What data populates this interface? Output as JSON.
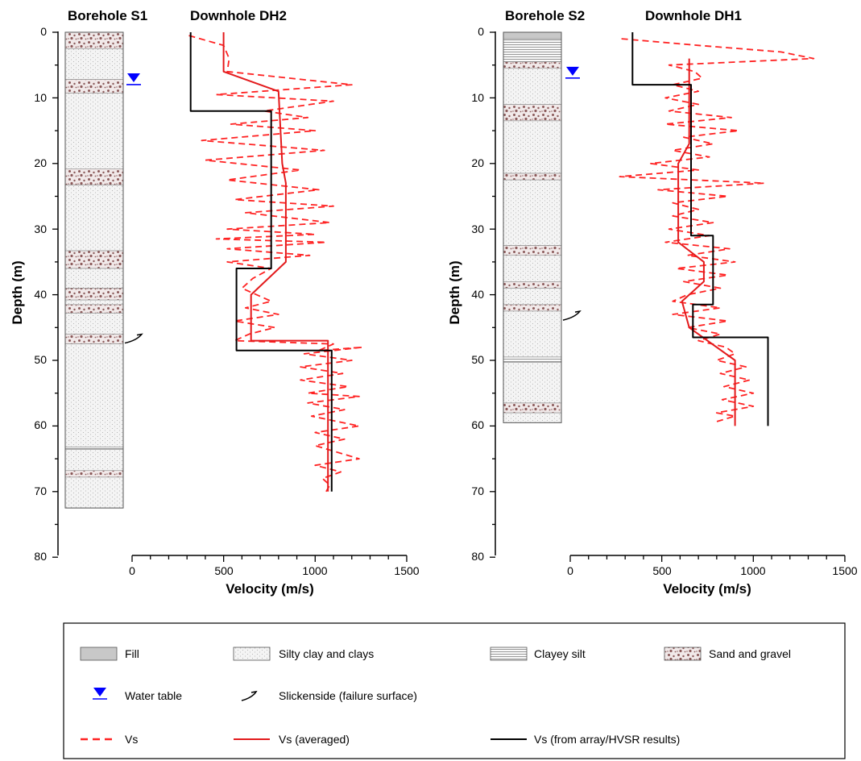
{
  "colors": {
    "vs": "#ff2222",
    "vs_averaged": "#e31a1c",
    "vs_array": "#000000",
    "water_table": "#0000ff",
    "fill": "#c8c8c8",
    "silty_clay": "#f4f4f4",
    "sand_gravel_dots": "#8b5a5a"
  },
  "y_axis": {
    "label": "Depth (m)",
    "ticks": [
      "0",
      "10",
      "20",
      "30",
      "40",
      "50",
      "60",
      "70",
      "80"
    ]
  },
  "x_axis": {
    "label": "Velocity (m/s)",
    "ticks": [
      "0",
      "500",
      "1000",
      "1500"
    ]
  },
  "panels": [
    {
      "borehole_title": "Borehole S1",
      "downhole_title": "Downhole DH2"
    },
    {
      "borehole_title": "Borehole S2",
      "downhole_title": "Downhole DH1"
    }
  ],
  "legend": {
    "fill": "Fill",
    "silty_clay": "Silty clay and clays",
    "clayey_silt": "Clayey silt",
    "sand_gravel": "Sand and gravel",
    "water_table": "Water table",
    "slickenside": "Slickenside (failure surface)",
    "vs": "Vs",
    "vs_averaged": "Vs (averaged)",
    "vs_array": "Vs (from array/HVSR results)"
  },
  "chart_data": [
    {
      "type": "line",
      "title": "Downhole DH2",
      "xlabel": "Velocity (m/s)",
      "ylabel": "Depth (m)",
      "xlim": [
        0,
        1500
      ],
      "ylim": [
        80,
        0
      ],
      "borehole": {
        "name": "Borehole S1",
        "total_depth": 72.5,
        "water_table_depth": 7,
        "slickenside_depth": 47,
        "layers": [
          {
            "type": "sand_gravel",
            "top": 0,
            "bottom": 2.5
          },
          {
            "type": "silty_clay",
            "top": 2.5,
            "bottom": 7.2
          },
          {
            "type": "sand_gravel",
            "top": 7.2,
            "bottom": 9.3
          },
          {
            "type": "silty_clay",
            "top": 9.3,
            "bottom": 20.8
          },
          {
            "type": "sand_gravel",
            "top": 20.8,
            "bottom": 23.3
          },
          {
            "type": "silty_clay",
            "top": 23.3,
            "bottom": 33.3
          },
          {
            "type": "sand_gravel",
            "top": 33.3,
            "bottom": 36
          },
          {
            "type": "silty_clay",
            "top": 36,
            "bottom": 39
          },
          {
            "type": "sand_gravel",
            "top": 39,
            "bottom": 40.8
          },
          {
            "type": "silty_clay",
            "top": 40.8,
            "bottom": 41.5
          },
          {
            "type": "sand_gravel",
            "top": 41.5,
            "bottom": 42.8
          },
          {
            "type": "silty_clay",
            "top": 42.8,
            "bottom": 46
          },
          {
            "type": "sand_gravel",
            "top": 46,
            "bottom": 47.5
          },
          {
            "type": "silty_clay",
            "top": 47.5,
            "bottom": 63.2
          },
          {
            "type": "clayey_silt",
            "top": 63.2,
            "bottom": 63.6
          },
          {
            "type": "silty_clay",
            "top": 63.6,
            "bottom": 66.8
          },
          {
            "type": "sand_gravel",
            "top": 66.8,
            "bottom": 67.8
          },
          {
            "type": "silty_clay",
            "top": 67.8,
            "bottom": 72.5
          }
        ]
      },
      "series": [
        {
          "name": "Vs",
          "style": "dashed",
          "points": [
            [
              310,
              0.5
            ],
            [
              500,
              2
            ],
            [
              530,
              4
            ],
            [
              520,
              6
            ],
            [
              1200,
              8
            ],
            [
              460,
              9.5
            ],
            [
              1100,
              10.5
            ],
            [
              720,
              12
            ],
            [
              960,
              13
            ],
            [
              540,
              14
            ],
            [
              1000,
              15
            ],
            [
              380,
              16.5
            ],
            [
              1050,
              18
            ],
            [
              400,
              19.5
            ],
            [
              920,
              21
            ],
            [
              520,
              22.5
            ],
            [
              1020,
              24
            ],
            [
              560,
              25.5
            ],
            [
              1100,
              26.5
            ],
            [
              620,
              27.5
            ],
            [
              1080,
              29
            ],
            [
              520,
              30
            ],
            [
              1000,
              30.8
            ],
            [
              460,
              31.5
            ],
            [
              1060,
              32
            ],
            [
              520,
              33
            ],
            [
              970,
              34
            ],
            [
              520,
              35
            ],
            [
              760,
              36
            ],
            [
              660,
              37.5
            ],
            [
              600,
              39
            ],
            [
              760,
              41
            ],
            [
              620,
              42
            ],
            [
              800,
              43
            ],
            [
              560,
              44
            ],
            [
              780,
              45
            ],
            [
              640,
              46
            ],
            [
              560,
              47
            ],
            [
              1100,
              47.5
            ],
            [
              1020,
              48.5
            ],
            [
              1260,
              48
            ],
            [
              940,
              49
            ],
            [
              1200,
              50
            ],
            [
              920,
              51
            ],
            [
              1150,
              52
            ],
            [
              920,
              53
            ],
            [
              1180,
              54
            ],
            [
              960,
              55
            ],
            [
              1240,
              55.5
            ],
            [
              960,
              56.5
            ],
            [
              1160,
              57.5
            ],
            [
              980,
              58.5
            ],
            [
              1240,
              60
            ],
            [
              1000,
              61
            ],
            [
              1160,
              62
            ],
            [
              1000,
              63
            ],
            [
              1240,
              65
            ],
            [
              1000,
              66
            ],
            [
              1140,
              67
            ],
            [
              1040,
              68
            ],
            [
              1080,
              69
            ],
            [
              1060,
              70
            ]
          ]
        },
        {
          "name": "Vs (averaged)",
          "style": "solid",
          "points": [
            [
              500,
              0
            ],
            [
              500,
              6
            ],
            [
              800,
              9
            ],
            [
              820,
              20
            ],
            [
              840,
              23
            ],
            [
              840,
              35
            ],
            [
              650,
              40
            ],
            [
              650,
              47
            ],
            [
              1070,
              47
            ],
            [
              1070,
              70
            ]
          ]
        },
        {
          "name": "Vs (from array/HVSR results)",
          "style": "solid",
          "points": [
            [
              320,
              0
            ],
            [
              320,
              12
            ],
            [
              760,
              12
            ],
            [
              760,
              36
            ],
            [
              570,
              36
            ],
            [
              570,
              48.5
            ],
            [
              1090,
              48.5
            ],
            [
              1090,
              70
            ]
          ]
        }
      ]
    },
    {
      "type": "line",
      "title": "Downhole DH1",
      "xlabel": "Velocity (m/s)",
      "ylabel": "Depth (m)",
      "xlim": [
        0,
        1500
      ],
      "ylim": [
        80,
        0
      ],
      "borehole": {
        "name": "Borehole S2",
        "total_depth": 59.5,
        "water_table_depth": 6,
        "slickenside_depth": 43.5,
        "layers": [
          {
            "type": "fill",
            "top": 0,
            "bottom": 1
          },
          {
            "type": "clayey_silt",
            "top": 1,
            "bottom": 4.5
          },
          {
            "type": "sand_gravel",
            "top": 4.5,
            "bottom": 5.5
          },
          {
            "type": "silty_clay",
            "top": 5.5,
            "bottom": 11
          },
          {
            "type": "sand_gravel",
            "top": 11,
            "bottom": 13.5
          },
          {
            "type": "silty_clay",
            "top": 13.5,
            "bottom": 21.5
          },
          {
            "type": "sand_gravel",
            "top": 21.5,
            "bottom": 22.5
          },
          {
            "type": "silty_clay",
            "top": 22.5,
            "bottom": 32.5
          },
          {
            "type": "sand_gravel",
            "top": 32.5,
            "bottom": 34
          },
          {
            "type": "silty_clay",
            "top": 34,
            "bottom": 38
          },
          {
            "type": "sand_gravel",
            "top": 38,
            "bottom": 39
          },
          {
            "type": "silty_clay",
            "top": 39,
            "bottom": 41.5
          },
          {
            "type": "sand_gravel",
            "top": 41.5,
            "bottom": 42.5
          },
          {
            "type": "silty_clay",
            "top": 42.5,
            "bottom": 49.5
          },
          {
            "type": "clayey_silt",
            "top": 49.5,
            "bottom": 50.3
          },
          {
            "type": "silty_clay",
            "top": 50.3,
            "bottom": 56.5
          },
          {
            "type": "sand_gravel",
            "top": 56.5,
            "bottom": 58
          },
          {
            "type": "silty_clay",
            "top": 58,
            "bottom": 59.5
          }
        ]
      },
      "series": [
        {
          "name": "Vs",
          "style": "dashed",
          "points": [
            [
              280,
              1
            ],
            [
              700,
              2
            ],
            [
              1150,
              3
            ],
            [
              1330,
              4
            ],
            [
              540,
              5
            ],
            [
              680,
              6
            ],
            [
              720,
              7
            ],
            [
              560,
              8
            ],
            [
              700,
              9
            ],
            [
              520,
              10
            ],
            [
              700,
              11
            ],
            [
              540,
              12
            ],
            [
              880,
              13
            ],
            [
              520,
              14
            ],
            [
              920,
              15
            ],
            [
              620,
              16
            ],
            [
              780,
              17
            ],
            [
              560,
              18
            ],
            [
              760,
              19
            ],
            [
              440,
              20
            ],
            [
              700,
              21
            ],
            [
              270,
              22
            ],
            [
              1060,
              23
            ],
            [
              480,
              24
            ],
            [
              860,
              25
            ],
            [
              560,
              26
            ],
            [
              700,
              27
            ],
            [
              560,
              28
            ],
            [
              780,
              29
            ],
            [
              540,
              30
            ],
            [
              760,
              31
            ],
            [
              520,
              32
            ],
            [
              870,
              33
            ],
            [
              640,
              34
            ],
            [
              900,
              35
            ],
            [
              580,
              36
            ],
            [
              860,
              37
            ],
            [
              620,
              38
            ],
            [
              820,
              39
            ],
            [
              640,
              40
            ],
            [
              560,
              41
            ],
            [
              820,
              42
            ],
            [
              560,
              43
            ],
            [
              860,
              44
            ],
            [
              640,
              45
            ],
            [
              820,
              46
            ],
            [
              700,
              47
            ],
            [
              850,
              48
            ],
            [
              900,
              49
            ],
            [
              800,
              50
            ],
            [
              960,
              51
            ],
            [
              820,
              52
            ],
            [
              980,
              53
            ],
            [
              840,
              54
            ],
            [
              1000,
              55
            ],
            [
              830,
              56
            ],
            [
              1000,
              57
            ],
            [
              800,
              58
            ],
            [
              900,
              58.5
            ],
            [
              780,
              59.5
            ]
          ]
        },
        {
          "name": "Vs (averaged)",
          "style": "solid",
          "points": [
            [
              650,
              4
            ],
            [
              650,
              17
            ],
            [
              590,
              20
            ],
            [
              590,
              32
            ],
            [
              730,
              35
            ],
            [
              730,
              38
            ],
            [
              610,
              41
            ],
            [
              650,
              45
            ],
            [
              900,
              50
            ],
            [
              900,
              60
            ]
          ]
        },
        {
          "name": "Vs (from array/HVSR results)",
          "style": "solid",
          "points": [
            [
              340,
              0
            ],
            [
              340,
              8
            ],
            [
              660,
              8
            ],
            [
              660,
              31
            ],
            [
              780,
              31
            ],
            [
              780,
              41.5
            ],
            [
              670,
              41.5
            ],
            [
              670,
              46.5
            ],
            [
              1080,
              46.5
            ],
            [
              1080,
              60
            ]
          ]
        }
      ]
    }
  ]
}
